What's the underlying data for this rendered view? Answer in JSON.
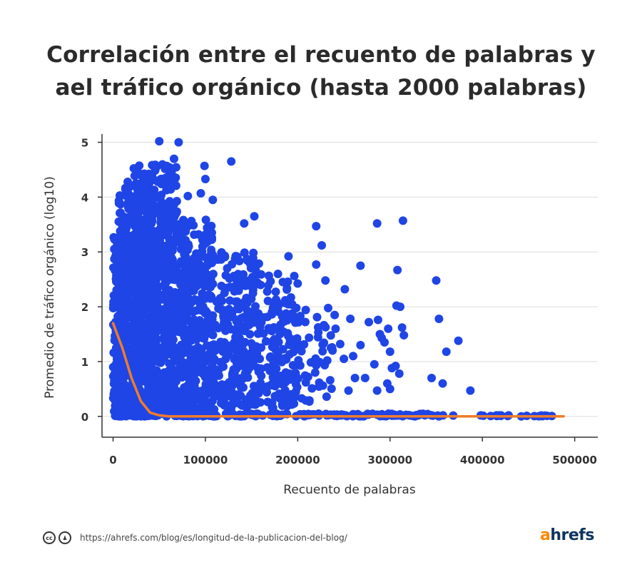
{
  "title_lines": [
    "Correlación entre el recuento de palabras y",
    "ael tráfico orgánico (hasta 2000 palabras)"
  ],
  "footer": {
    "url": "https://ahrefs.com/blog/es/longitud-de-la-publicacion-del-blog/",
    "icons": [
      "cc-icon",
      "attribution-icon"
    ]
  },
  "logo": {
    "a": "a",
    "rest": "hrefs"
  },
  "colors": {
    "points": "#1f45e6",
    "trend": "#f07b2a",
    "grid": "#dddddd",
    "axis": "#333333",
    "logo_accent": "#ff8800",
    "logo_text": "#0f3460"
  },
  "chart_data": {
    "type": "scatter",
    "title": "Correlación entre el recuento de palabras y ael tráfico orgánico (hasta 2000 palabras)",
    "xlabel": "Recuento de palabras",
    "ylabel": "Promedio de tráfico orgánico (log10)",
    "xlim": [
      -12000,
      525000
    ],
    "ylim": [
      -0.38,
      5.15
    ],
    "xticks": [
      0,
      100000,
      200000,
      300000,
      400000,
      500000
    ],
    "yticks": [
      0,
      1,
      2,
      3,
      4,
      5
    ],
    "xtick_labels": [
      "0",
      "100000",
      "200000",
      "300000",
      "400000",
      "500000"
    ],
    "ytick_labels": [
      "0",
      "1",
      "2",
      "3",
      "4",
      "5"
    ],
    "grid": {
      "y": true,
      "x": false
    },
    "legend": "none",
    "series": [
      {
        "type": "scatter",
        "points": [
          [
            50000,
            5.02
          ],
          [
            71000,
            5.0
          ],
          [
            128000,
            4.65
          ],
          [
            66000,
            4.7
          ],
          [
            99000,
            4.57
          ],
          [
            100000,
            4.33
          ],
          [
            95000,
            4.07
          ],
          [
            108000,
            3.95
          ],
          [
            81000,
            4.02
          ],
          [
            153000,
            3.65
          ],
          [
            142000,
            3.52
          ],
          [
            220000,
            3.47
          ],
          [
            226000,
            3.12
          ],
          [
            286000,
            3.52
          ],
          [
            314000,
            3.57
          ],
          [
            268000,
            2.75
          ],
          [
            308000,
            2.67
          ],
          [
            350000,
            2.48
          ],
          [
            353000,
            1.78
          ],
          [
            374000,
            1.38
          ],
          [
            361000,
            1.18
          ],
          [
            357000,
            0.6
          ],
          [
            345000,
            0.7
          ],
          [
            387000,
            0.47
          ],
          [
            190000,
            2.92
          ],
          [
            220000,
            2.77
          ],
          [
            230000,
            2.48
          ],
          [
            240000,
            1.85
          ],
          [
            251000,
            2.32
          ],
          [
            257000,
            1.78
          ],
          [
            277000,
            1.72
          ],
          [
            287000,
            1.76
          ],
          [
            291000,
            1.43
          ],
          [
            298000,
            1.6
          ],
          [
            307000,
            2.02
          ],
          [
            311000,
            2.0
          ],
          [
            313000,
            1.62
          ],
          [
            315000,
            1.48
          ],
          [
            289000,
            1.5
          ],
          [
            294000,
            1.35
          ],
          [
            300000,
            1.18
          ],
          [
            302000,
            0.88
          ],
          [
            297000,
            0.6
          ],
          [
            300000,
            0.5
          ],
          [
            306000,
            0.92
          ],
          [
            310000,
            0.78
          ],
          [
            283000,
            0.95
          ],
          [
            286000,
            0.47
          ],
          [
            273000,
            0.7
          ],
          [
            262000,
            0.7
          ],
          [
            255000,
            0.47
          ],
          [
            250000,
            1.05
          ],
          [
            246000,
            1.32
          ],
          [
            241000,
            1.6
          ],
          [
            236000,
            1.25
          ],
          [
            232000,
            1.02
          ],
          [
            260000,
            1.1
          ],
          [
            268000,
            1.3
          ]
        ]
      },
      {
        "name": "",
        "type": "line",
        "x": [
          0,
          10000,
          20000,
          30000,
          40000,
          50000,
          60000,
          80000,
          100000,
          150000,
          200000,
          300000,
          400000,
          488000
        ],
        "y": [
          1.7,
          1.25,
          0.7,
          0.28,
          0.07,
          0.02,
          0.0,
          0.0,
          0.0,
          0.0,
          0.0,
          0.0,
          0.0,
          0.0
        ]
      }
    ],
    "dense_regions": [
      {
        "x0": 0,
        "x1": 15000,
        "y0": 0.0,
        "y1": 3.3,
        "n": 240
      },
      {
        "x0": 5000,
        "x1": 45000,
        "y0": 0.0,
        "y1": 4.3,
        "n": 520
      },
      {
        "x0": 20000,
        "x1": 70000,
        "y0": 0.0,
        "y1": 4.6,
        "n": 420
      },
      {
        "x0": 40000,
        "x1": 110000,
        "y0": 0.0,
        "y1": 3.6,
        "n": 420
      },
      {
        "x0": 70000,
        "x1": 160000,
        "y0": 0.15,
        "y1": 3.0,
        "n": 330
      },
      {
        "x0": 120000,
        "x1": 200000,
        "y0": 0.15,
        "y1": 2.6,
        "n": 220
      },
      {
        "x0": 170000,
        "x1": 240000,
        "y0": 0.25,
        "y1": 2.1,
        "n": 90
      },
      {
        "x0": 0,
        "x1": 345000,
        "y0": 0.0,
        "y1": 0.05,
        "n": 180
      },
      {
        "x0": 345000,
        "x1": 480000,
        "y0": 0.0,
        "y1": 0.02,
        "n": 25
      }
    ]
  }
}
